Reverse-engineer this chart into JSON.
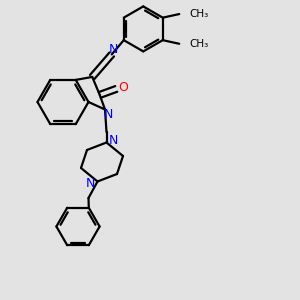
{
  "bg_color": "#e3e3e3",
  "bond_color": "#000000",
  "n_color": "#0000ff",
  "o_color": "#ff0000",
  "line_width": 1.6,
  "figsize": [
    3.0,
    3.0
  ],
  "dpi": 100,
  "xlim": [
    0,
    10
  ],
  "ylim": [
    0,
    10
  ]
}
